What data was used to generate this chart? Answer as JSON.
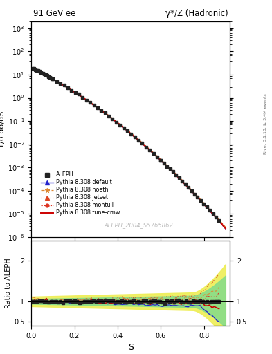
{
  "title_left": "91 GeV ee",
  "title_right": "γ*/Z (Hadronic)",
  "ylabel_main": "1/σ dσ/dS",
  "ylabel_ratio": "Ratio to ALEPH",
  "xlabel": "S",
  "watermark": "ALEPH_2004_S5765862",
  "right_label": "Rivet 3.1.10; ≥ 3.4M events",
  "ylim_main": [
    1e-06,
    2000
  ],
  "ylim_ratio": [
    0.4,
    2.5
  ],
  "xlim": [
    0.0,
    0.92
  ],
  "legend_entries": [
    {
      "label": "ALEPH",
      "color": "#222222",
      "marker": "s",
      "linestyle": "none"
    },
    {
      "label": "Pythia 8.308 default",
      "color": "#2222cc",
      "marker": "^",
      "linestyle": "-"
    },
    {
      "label": "Pythia 8.308 hoeth",
      "color": "#dd8833",
      "marker": "*",
      "linestyle": "--"
    },
    {
      "label": "Pythia 8.308 jetset",
      "color": "#dd4422",
      "marker": "^",
      "linestyle": ":"
    },
    {
      "label": "Pythia 8.308 montull",
      "color": "#dd3322",
      "marker": "o",
      "linestyle": "--"
    },
    {
      "label": "Pythia 8.308 tune-cmw",
      "color": "#cc0000",
      "marker": "none",
      "linestyle": "-"
    }
  ],
  "band_green_color": "#88dd88",
  "band_yellow_color": "#eeee55"
}
